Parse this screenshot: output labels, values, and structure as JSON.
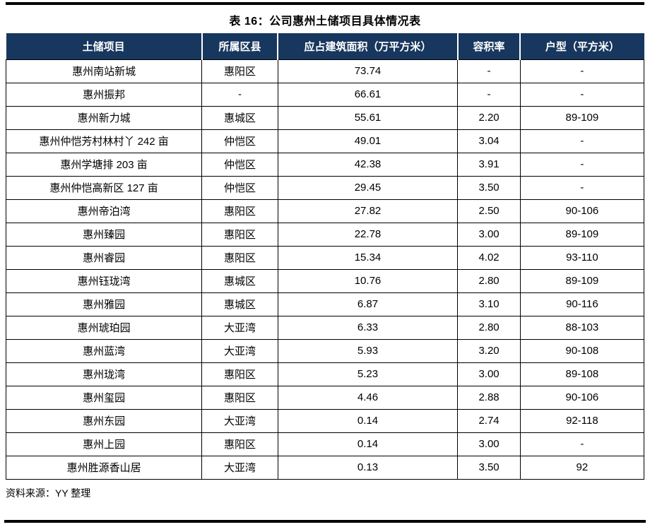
{
  "page": {
    "title": "表 16：公司惠州土储项目具体情况表",
    "source_note": "资料来源：YY 整理"
  },
  "colors": {
    "header_bg": "#17375E",
    "header_text": "#FFFFFF",
    "border": "#000000",
    "rule": "#000000"
  },
  "table": {
    "column_keys": [
      "project",
      "district",
      "gfa",
      "plot-ratio",
      "unit-type"
    ],
    "columns": [
      "土储项目",
      "所属区县",
      "应占建筑面积（万平方米）",
      "容积率",
      "户型（平方米）"
    ],
    "rows": [
      [
        "惠州南站新城",
        "惠阳区",
        "73.74",
        "-",
        "-"
      ],
      [
        "惠州振邦",
        "-",
        "66.61",
        "-",
        "-"
      ],
      [
        "惠州新力城",
        "惠城区",
        "55.61",
        "2.20",
        "89-109"
      ],
      [
        "惠州仲恺芳村林村丫 242 亩",
        "仲恺区",
        "49.01",
        "3.04",
        "-"
      ],
      [
        "惠州学塘排 203 亩",
        "仲恺区",
        "42.38",
        "3.91",
        "-"
      ],
      [
        "惠州仲恺高新区 127 亩",
        "仲恺区",
        "29.45",
        "3.50",
        "-"
      ],
      [
        "惠州帝泊湾",
        "惠阳区",
        "27.82",
        "2.50",
        "90-106"
      ],
      [
        "惠州臻园",
        "惠阳区",
        "22.78",
        "3.00",
        "89-109"
      ],
      [
        "惠州睿园",
        "惠阳区",
        "15.34",
        "4.02",
        "93-110"
      ],
      [
        "惠州钰珑湾",
        "惠城区",
        "10.76",
        "2.80",
        "89-109"
      ],
      [
        "惠州雅园",
        "惠城区",
        "6.87",
        "3.10",
        "90-116"
      ],
      [
        "惠州琥珀园",
        "大亚湾",
        "6.33",
        "2.80",
        "88-103"
      ],
      [
        "惠州蓝湾",
        "大亚湾",
        "5.93",
        "3.20",
        "90-108"
      ],
      [
        "惠州珑湾",
        "惠阳区",
        "5.23",
        "3.00",
        "89-108"
      ],
      [
        "惠州玺园",
        "惠阳区",
        "4.46",
        "2.88",
        "90-106"
      ],
      [
        "惠州东园",
        "大亚湾",
        "0.14",
        "2.74",
        "92-118"
      ],
      [
        "惠州上园",
        "惠阳区",
        "0.14",
        "3.00",
        "-"
      ],
      [
        "惠州胜源香山居",
        "大亚湾",
        "0.13",
        "3.50",
        "92"
      ]
    ]
  }
}
